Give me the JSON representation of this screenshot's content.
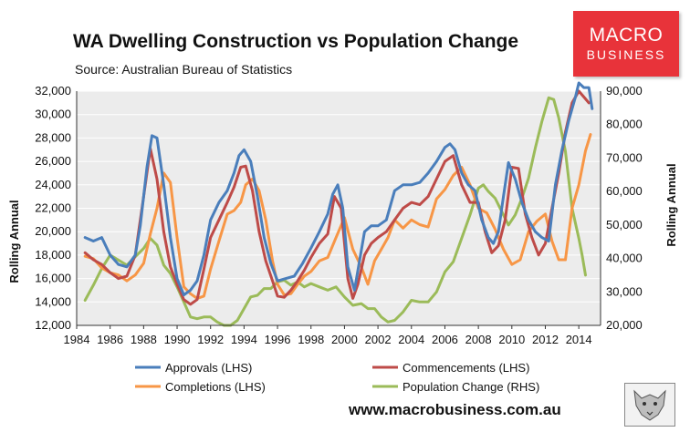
{
  "header": {
    "title": "WA Dwelling Construction vs Population Change",
    "subtitle": "Source: Australian Bureau of Statistics"
  },
  "logo": {
    "line1": "MACRO",
    "line2": "BUSINESS",
    "color": "#e8333a"
  },
  "footer": {
    "url": "www.macrobusiness.com.au"
  },
  "watermark": {
    "icon": "wolf-icon"
  },
  "chart_data": {
    "type": "line",
    "title": "WA Dwelling Construction vs Population Change",
    "xlabel": "",
    "ylabel": "Rolling Annual",
    "y2label": "Rolling Annual",
    "xlim": [
      1984,
      2015.3
    ],
    "ylim": [
      12000,
      32000
    ],
    "y2lim": [
      20000,
      90000
    ],
    "xticks": [
      "1984",
      "1986",
      "1988",
      "1990",
      "1992",
      "1994",
      "1996",
      "1998",
      "2000",
      "2002",
      "2004",
      "2006",
      "2008",
      "2010",
      "2012",
      "2014"
    ],
    "yticks": [
      "12,000",
      "14,000",
      "16,000",
      "18,000",
      "20,000",
      "22,000",
      "24,000",
      "26,000",
      "28,000",
      "30,000",
      "32,000"
    ],
    "y2ticks": [
      "20,000",
      "30,000",
      "40,000",
      "50,000",
      "60,000",
      "70,000",
      "80,000",
      "90,000"
    ],
    "grid": true,
    "plot_background": "#ececec",
    "series": [
      {
        "name": "Approvals (LHS)",
        "axis": "left",
        "color": "#4a7ebb",
        "x": [
          1984.5,
          1985.0,
          1985.5,
          1986.0,
          1986.5,
          1987.0,
          1987.5,
          1987.8,
          1988.2,
          1988.5,
          1988.8,
          1989.2,
          1989.6,
          1990.0,
          1990.4,
          1990.8,
          1991.2,
          1991.6,
          1992.0,
          1992.5,
          1993.0,
          1993.4,
          1993.7,
          1994.0,
          1994.4,
          1994.8,
          1995.2,
          1995.6,
          1996.0,
          1996.5,
          1997.0,
          1997.5,
          1998.0,
          1998.5,
          1999.0,
          1999.3,
          1999.6,
          1999.9,
          2000.2,
          2000.6,
          2000.9,
          2001.2,
          2001.6,
          2002.0,
          2002.5,
          2003.0,
          2003.5,
          2004.0,
          2004.5,
          2005.0,
          2005.5,
          2006.0,
          2006.3,
          2006.6,
          2007.0,
          2007.4,
          2007.8,
          2008.2,
          2008.6,
          2008.9,
          2009.2,
          2009.5,
          2009.8,
          2010.2,
          2010.6,
          2011.0,
          2011.4,
          2011.8,
          2012.2,
          2012.6,
          2013.0,
          2013.4,
          2013.8,
          2014.0,
          2014.3,
          2014.6,
          2014.8
        ],
        "y": [
          19500,
          19200,
          19500,
          18000,
          17200,
          17000,
          18000,
          20500,
          25500,
          28200,
          28000,
          24000,
          19500,
          16000,
          14600,
          15000,
          15800,
          18000,
          21000,
          22500,
          23500,
          25000,
          26500,
          27000,
          26000,
          23000,
          19500,
          17300,
          15800,
          16000,
          16200,
          17300,
          18600,
          20000,
          21500,
          23200,
          24000,
          22000,
          17000,
          15000,
          17500,
          20000,
          20500,
          20500,
          21000,
          23500,
          24000,
          24000,
          24200,
          25000,
          26000,
          27200,
          27500,
          27000,
          25000,
          24000,
          23500,
          21000,
          19500,
          19000,
          20000,
          23000,
          25900,
          24500,
          22500,
          21000,
          20000,
          19500,
          19200,
          24000,
          27000,
          29500,
          31500,
          32700,
          32300,
          32300,
          30500
        ]
      },
      {
        "name": "Commencements (LHS)",
        "axis": "left",
        "color": "#be4b48",
        "x": [
          1984.5,
          1985.0,
          1985.5,
          1986.0,
          1986.5,
          1987.0,
          1987.5,
          1988.0,
          1988.4,
          1988.8,
          1989.2,
          1989.6,
          1990.0,
          1990.4,
          1990.8,
          1991.2,
          1991.6,
          1992.0,
          1992.5,
          1993.0,
          1993.4,
          1993.8,
          1994.1,
          1994.5,
          1994.9,
          1995.3,
          1995.7,
          1996.0,
          1996.4,
          1996.8,
          1997.2,
          1997.6,
          1998.0,
          1998.5,
          1999.0,
          1999.4,
          1999.8,
          2000.2,
          2000.5,
          2000.8,
          2001.2,
          2001.6,
          2002.0,
          2002.5,
          2003.0,
          2003.5,
          2004.0,
          2004.5,
          2005.0,
          2005.5,
          2006.0,
          2006.5,
          2007.0,
          2007.5,
          2008.0,
          2008.4,
          2008.8,
          2009.2,
          2009.6,
          2010.0,
          2010.4,
          2010.8,
          2011.2,
          2011.6,
          2012.0,
          2012.4,
          2012.8,
          2013.2,
          2013.6,
          2014.0,
          2014.3,
          2014.6
        ],
        "y": [
          18200,
          17600,
          17200,
          16500,
          16000,
          16200,
          18000,
          23000,
          27100,
          24500,
          20000,
          17000,
          15500,
          14200,
          13800,
          14200,
          16800,
          19500,
          21000,
          22500,
          23800,
          25500,
          25600,
          23500,
          20000,
          17500,
          15800,
          14500,
          14400,
          15000,
          15800,
          16700,
          17800,
          19000,
          19800,
          23000,
          22000,
          16000,
          14300,
          15500,
          18000,
          19000,
          19500,
          20000,
          21000,
          22000,
          22500,
          22300,
          23000,
          24500,
          26000,
          26500,
          24000,
          22500,
          22500,
          20000,
          18200,
          18800,
          21000,
          25500,
          25400,
          21500,
          19500,
          18000,
          19000,
          22000,
          25000,
          28500,
          31000,
          32000,
          31500,
          31000
        ]
      },
      {
        "name": "Completions (LHS)",
        "axis": "left",
        "color": "#f79646",
        "x": [
          1984.5,
          1985.0,
          1985.5,
          1986.0,
          1986.5,
          1987.0,
          1987.5,
          1988.0,
          1988.4,
          1988.8,
          1989.2,
          1989.6,
          1990.0,
          1990.4,
          1990.8,
          1991.2,
          1991.6,
          1992.0,
          1992.5,
          1993.0,
          1993.4,
          1993.8,
          1994.1,
          1994.5,
          1994.9,
          1995.3,
          1995.7,
          1996.0,
          1996.4,
          1996.8,
          1997.2,
          1997.6,
          1998.0,
          1998.5,
          1999.0,
          1999.5,
          2000.0,
          2000.5,
          2001.0,
          2001.4,
          2001.8,
          2002.2,
          2002.6,
          2003.0,
          2003.5,
          2004.0,
          2004.5,
          2005.0,
          2005.5,
          2006.0,
          2006.5,
          2007.0,
          2007.5,
          2008.0,
          2008.5,
          2009.0,
          2009.5,
          2010.0,
          2010.5,
          2011.0,
          2011.5,
          2012.0,
          2012.4,
          2012.8,
          2013.2,
          2013.6,
          2014.0,
          2014.4,
          2014.7
        ],
        "y": [
          17900,
          17700,
          16900,
          16500,
          16300,
          15800,
          16300,
          17300,
          19800,
          22000,
          25000,
          24200,
          19500,
          15300,
          14700,
          14300,
          14500,
          16800,
          19200,
          21500,
          21800,
          22500,
          24000,
          24500,
          23500,
          21000,
          17500,
          15500,
          14600,
          14700,
          15500,
          16200,
          16600,
          17500,
          17800,
          19500,
          21200,
          18500,
          17000,
          15500,
          17500,
          18500,
          19500,
          21000,
          20300,
          21000,
          20600,
          20400,
          22800,
          23600,
          24800,
          25500,
          24000,
          22000,
          21600,
          20200,
          18500,
          17200,
          17600,
          20000,
          20900,
          21500,
          19200,
          17600,
          17600,
          22000,
          24000,
          26900,
          28300
        ]
      },
      {
        "name": "Population Change (RHS)",
        "axis": "right",
        "color": "#9bbb59",
        "x": [
          1984.5,
          1985.0,
          1985.5,
          1986.0,
          1986.5,
          1987.0,
          1987.5,
          1988.0,
          1988.4,
          1988.8,
          1989.2,
          1989.6,
          1990.0,
          1990.4,
          1990.8,
          1991.2,
          1991.6,
          1992.0,
          1992.4,
          1992.8,
          1993.2,
          1993.6,
          1994.0,
          1994.4,
          1994.8,
          1995.2,
          1995.6,
          1996.0,
          1996.4,
          1996.8,
          1997.2,
          1997.6,
          1998.0,
          1998.5,
          1999.0,
          1999.5,
          2000.0,
          2000.5,
          2001.0,
          2001.4,
          2001.8,
          2002.2,
          2002.6,
          2003.0,
          2003.5,
          2004.0,
          2004.5,
          2005.0,
          2005.5,
          2006.0,
          2006.5,
          2007.0,
          2007.5,
          2008.0,
          2008.3,
          2008.6,
          2009.0,
          2009.4,
          2009.8,
          2010.2,
          2010.6,
          2011.0,
          2011.4,
          2011.8,
          2012.2,
          2012.5,
          2012.8,
          2013.2,
          2013.6,
          2014.0,
          2014.2,
          2014.4
        ],
        "y": [
          27500,
          32000,
          37000,
          41000,
          39500,
          38000,
          40500,
          43000,
          46000,
          44000,
          38000,
          35500,
          31500,
          27000,
          22500,
          22000,
          22500,
          22500,
          21000,
          20000,
          20000,
          21500,
          25000,
          28500,
          29000,
          31000,
          31000,
          33000,
          33500,
          32000,
          33000,
          31500,
          32500,
          31500,
          30500,
          31500,
          28500,
          26000,
          26500,
          25000,
          25000,
          22500,
          21000,
          21500,
          24000,
          27500,
          27000,
          27000,
          30000,
          36000,
          39000,
          46000,
          53000,
          61000,
          62000,
          60000,
          58000,
          54000,
          50000,
          53000,
          58000,
          64000,
          73000,
          81000,
          88000,
          87500,
          82000,
          72000,
          55000,
          46000,
          41000,
          35000
        ]
      }
    ]
  }
}
